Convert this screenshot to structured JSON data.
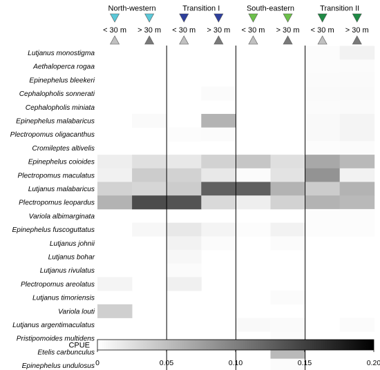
{
  "chart_data": {
    "type": "heatmap",
    "regions": [
      {
        "name": "North-western",
        "color": "#5bc8d8"
      },
      {
        "name": "Transition I",
        "color": "#2e3f9c"
      },
      {
        "name": "South-eastern",
        "color": "#6cc04a"
      },
      {
        "name": "Transition II",
        "color": "#1f8a45"
      }
    ],
    "depth_labels": [
      "< 30 m",
      "> 30 m"
    ],
    "depth_marker_colors": [
      "#c0c0c0",
      "#7a7a7a"
    ],
    "columns": [
      "North-western < 30 m",
      "North-western > 30 m",
      "Transition I < 30 m",
      "Transition I > 30 m",
      "South-eastern < 30 m",
      "South-eastern > 30 m",
      "Transition II < 30 m",
      "Transition II > 30 m"
    ],
    "species": [
      "Lutjanus monostigma",
      "Aethaloperca rogaa",
      "Epinephelus bleekeri",
      "Cephalopholis sonnerati",
      "Cephalopholis miniata",
      "Epinephelus malabaricus",
      "Plectropomus oligacanthus",
      "Cromileptes altivelis",
      "Epinephelus coioides",
      "Plectropomus maculatus",
      "Lutjanus malabaricus",
      "Plectropomus leopardus",
      "Variola albimarginata",
      "Epinephelus fuscoguttatus",
      "Lutjanus johnii",
      "Lutjanus bohar",
      "Lutjanus rivulatus",
      "Plectropomus areolatus",
      "Lutjanus timoriensis",
      "Variola louti",
      "Lutjanus argentimaculatus",
      "Pristipomoides multidens",
      "Etelis carbunculus",
      "Epinephelus undulosus"
    ],
    "values": [
      [
        0,
        0,
        0,
        0,
        0,
        0,
        0.002,
        0.01
      ],
      [
        0,
        0,
        0,
        0,
        0,
        0,
        0.002,
        0.003
      ],
      [
        0,
        0,
        0,
        0,
        0,
        0,
        0.003,
        0.004
      ],
      [
        0,
        0,
        0,
        0.003,
        0,
        0,
        0.004,
        0.005
      ],
      [
        0,
        0,
        0,
        0,
        0,
        0,
        0.003,
        0.004
      ],
      [
        0,
        0.004,
        0,
        0.06,
        0,
        0,
        0.005,
        0.009
      ],
      [
        0,
        0,
        0.002,
        0.003,
        0,
        0,
        0.005,
        0.009
      ],
      [
        0,
        0,
        0,
        0,
        0,
        0,
        0.002,
        0.003
      ],
      [
        0.013,
        0.024,
        0.018,
        0.035,
        0.045,
        0.025,
        0.068,
        0.055
      ],
      [
        0.011,
        0.04,
        0.035,
        0.018,
        0.003,
        0.022,
        0.085,
        0.01
      ],
      [
        0.035,
        0.032,
        0.04,
        0.125,
        0.125,
        0.06,
        0.04,
        0.06
      ],
      [
        0.06,
        0.14,
        0.135,
        0.03,
        0.013,
        0.035,
        0.06,
        0.055
      ],
      [
        0,
        0,
        0,
        0,
        0,
        0,
        0.002,
        0.002
      ],
      [
        0,
        0.006,
        0.018,
        0.009,
        0.002,
        0.01,
        0.002,
        0.002
      ],
      [
        0,
        0,
        0.01,
        0.003,
        0,
        0.003,
        0,
        0
      ],
      [
        0,
        0,
        0.006,
        0,
        0,
        0,
        0,
        0
      ],
      [
        0,
        0,
        0.003,
        0,
        0,
        0,
        0,
        0
      ],
      [
        0.009,
        0,
        0.012,
        0,
        0,
        0,
        0,
        0
      ],
      [
        0,
        0,
        0,
        0,
        0,
        0.003,
        0,
        0
      ],
      [
        0.038,
        0,
        0,
        0,
        0,
        0,
        0,
        0
      ],
      [
        0,
        0,
        0,
        0,
        0.005,
        0.004,
        0,
        0.003
      ],
      [
        0,
        0,
        0,
        0,
        0,
        0.003,
        0,
        0
      ],
      [
        0,
        0,
        0,
        0,
        0,
        0.055,
        0,
        0
      ],
      [
        0,
        0,
        0,
        0,
        0,
        0.003,
        0,
        0
      ]
    ],
    "colorbar": {
      "label": "CPUE",
      "range": [
        0,
        0.2
      ],
      "ticks": [
        0,
        0.05,
        0.1,
        0.15,
        0.2
      ],
      "tick_labels": [
        "0",
        "0.05",
        "0.10",
        "0.15",
        "0.20"
      ],
      "colors": [
        "#ffffff",
        "#000000"
      ]
    }
  }
}
